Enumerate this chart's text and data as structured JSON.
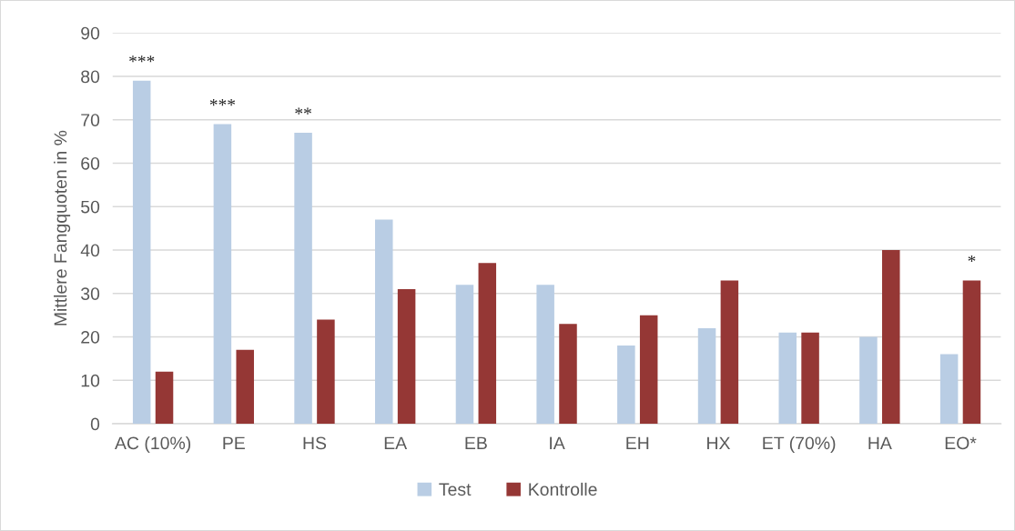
{
  "chart_data": {
    "type": "bar",
    "ylabel": "Mittlere Fangquoten in %",
    "categories": [
      "AC (10%)",
      "PE",
      "HS",
      "EA",
      "EB",
      "IA",
      "EH",
      "HX",
      "ET (70%)",
      "HA",
      "EO*"
    ],
    "series": [
      {
        "name": "Test",
        "color": "#b9cde4",
        "values": [
          79,
          69,
          67,
          47,
          32,
          32,
          18,
          22,
          21,
          20,
          16
        ]
      },
      {
        "name": "Kontrolle",
        "color": "#953735",
        "values": [
          12,
          17,
          24,
          31,
          37,
          23,
          25,
          33,
          21,
          40,
          33
        ]
      }
    ],
    "annotations": [
      {
        "text": "***",
        "x": "AC (10%)",
        "y": 79
      },
      {
        "text": "***",
        "x": "PE",
        "y": 69
      },
      {
        "text": "**",
        "x": "HS",
        "y": 67
      },
      {
        "text": "*",
        "x": "EO*",
        "y": 33
      }
    ],
    "ylim": [
      0,
      90
    ],
    "yticks": [
      0,
      10,
      20,
      30,
      40,
      50,
      60,
      70,
      80,
      90
    ],
    "grid": "y",
    "legend": "bottom"
  }
}
